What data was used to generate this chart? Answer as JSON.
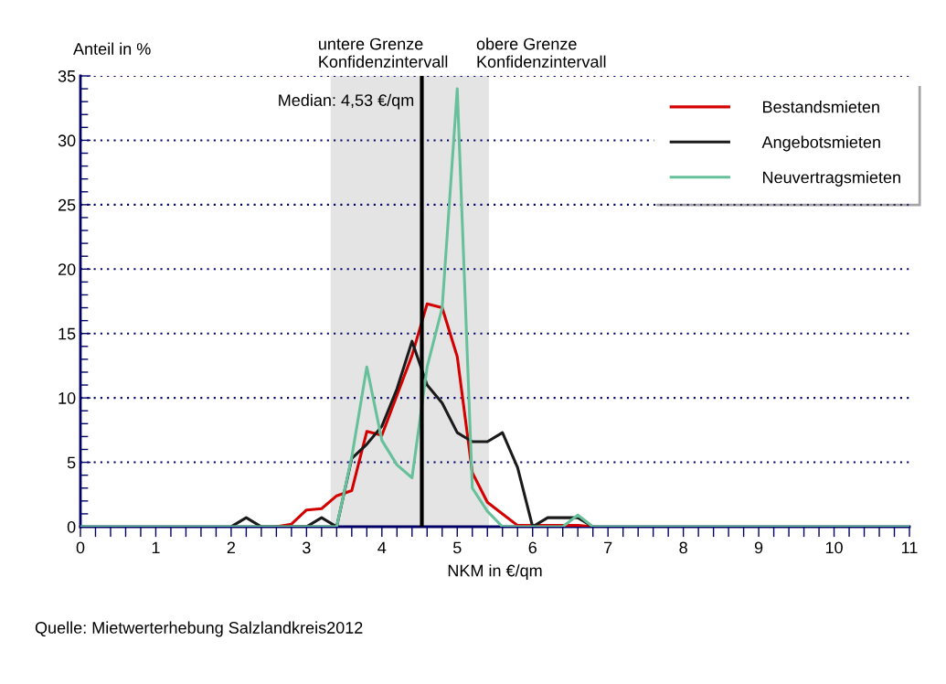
{
  "chart_data": {
    "type": "line",
    "xlabel": "NKM in €/qm",
    "ylabel": "Anteil in %",
    "x": [
      0,
      0.2,
      0.4,
      0.6,
      0.8,
      1,
      1.2,
      1.4,
      1.6,
      1.8,
      2,
      2.2,
      2.4,
      2.6,
      2.8,
      3,
      3.2,
      3.4,
      3.6,
      3.8,
      4,
      4.2,
      4.4,
      4.6,
      4.8,
      5,
      5.2,
      5.4,
      5.6,
      5.8,
      6,
      6.2,
      6.4,
      6.6,
      6.8,
      7,
      7.2,
      7.4,
      7.6,
      7.8,
      8,
      8.2,
      8.4,
      8.6,
      8.8,
      9,
      9.2,
      9.4,
      9.6,
      9.8,
      10,
      10.2,
      10.4,
      10.6,
      10.8,
      11
    ],
    "series": [
      {
        "name": "Bestandsmieten",
        "color": "#d40000",
        "values": [
          null,
          null,
          null,
          null,
          null,
          null,
          null,
          null,
          null,
          null,
          null,
          null,
          null,
          0,
          0.2,
          1.3,
          1.4,
          2.4,
          2.8,
          7.4,
          7.1,
          10.2,
          13.3,
          17.3,
          17.0,
          13.2,
          4.2,
          1.9,
          1.0,
          0.1,
          0.1,
          0.1,
          0.1,
          0.1,
          0,
          null,
          null,
          null,
          null,
          null,
          null,
          null,
          null,
          null,
          null,
          null,
          null,
          null,
          null,
          null,
          null,
          null,
          null,
          null,
          null,
          null
        ]
      },
      {
        "name": "Angebotsmieten",
        "color": "#1a1a1a",
        "values": [
          null,
          null,
          null,
          null,
          null,
          null,
          null,
          null,
          null,
          null,
          0,
          0.7,
          0,
          0,
          0,
          0,
          0.7,
          0,
          5.3,
          6.4,
          7.8,
          10.7,
          14.4,
          11.0,
          9.6,
          7.3,
          6.6,
          6.6,
          7.3,
          4.6,
          0,
          0.7,
          0.7,
          0.7,
          0,
          null,
          null,
          null,
          null,
          null,
          null,
          null,
          null,
          null,
          null,
          null,
          null,
          null,
          null,
          null,
          null,
          null,
          null,
          null,
          null,
          null
        ]
      },
      {
        "name": "Neuvertragsmieten",
        "color": "#66c09a",
        "values": [
          0,
          0,
          0,
          0,
          0,
          0,
          0,
          0,
          0,
          0,
          0,
          0,
          0,
          0,
          0,
          0,
          0,
          0,
          5.4,
          12.4,
          6.7,
          4.8,
          3.8,
          12.4,
          17.0,
          34.0,
          3.0,
          1.2,
          0,
          0,
          0,
          0,
          0,
          0.9,
          0,
          0,
          0,
          0,
          0,
          0,
          0,
          0,
          0,
          0,
          0,
          0,
          0,
          0,
          0,
          0,
          0,
          0,
          0,
          0,
          0,
          0
        ]
      }
    ],
    "xlim": [
      0,
      11
    ],
    "xticks": [
      0,
      1,
      2,
      3,
      4,
      5,
      6,
      7,
      8,
      9,
      10,
      11
    ],
    "ylim": [
      0,
      35
    ],
    "yticks": [
      0,
      5,
      10,
      15,
      20,
      25,
      30,
      35
    ],
    "bands": [
      {
        "axis": "x",
        "from": 3.32,
        "to": 5.42,
        "color": "#e4e4e4"
      }
    ],
    "ref_lines": [
      {
        "axis": "x",
        "value": 4.53,
        "label": "Median: 4,53 €/qm",
        "color": "#000000"
      }
    ],
    "annotations": [
      "untere Grenze\nKonfidenzintervall",
      "obere Grenze\nKonfidenzintervall",
      "Quelle: Mietwerterhebung Salzlandkreis2012"
    ],
    "grid": "y",
    "legend": "top right",
    "marker": "none",
    "line_style": "solid"
  }
}
